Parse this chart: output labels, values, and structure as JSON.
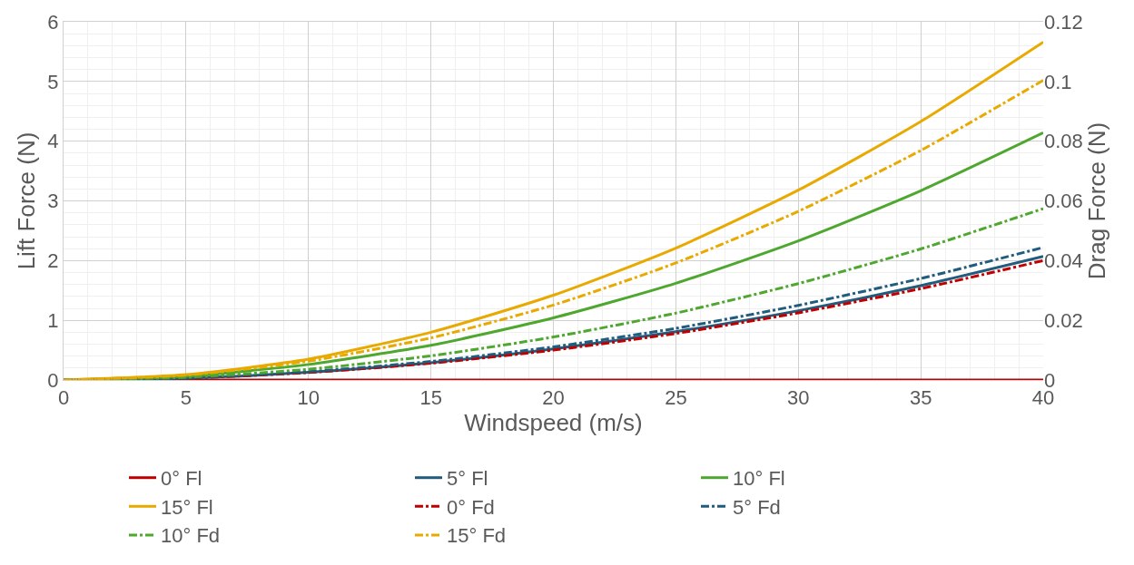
{
  "chart_data": {
    "type": "line",
    "xlabel": "Windspeed (m/s)",
    "ylabel": "Lift Force (N)",
    "y2label": "Drag Force (N)",
    "x": [
      0,
      5,
      10,
      15,
      20,
      25,
      30,
      35,
      40
    ],
    "xlim": [
      0,
      40
    ],
    "xticks": [
      0,
      5,
      10,
      15,
      20,
      25,
      30,
      35,
      40
    ],
    "ylim": [
      0,
      6
    ],
    "yticks": [
      0,
      1,
      2,
      3,
      4,
      5,
      6
    ],
    "y2lim": [
      0,
      0.12
    ],
    "y2ticks": [
      0,
      0.02,
      0.04,
      0.06,
      0.08,
      0.1,
      0.12
    ],
    "grid": true,
    "legend": "bottom",
    "marker": "none",
    "series": [
      {
        "name": "0° Fl",
        "color": "#c00000",
        "line_style": "solid",
        "values": [
          0,
          0,
          0,
          0,
          0,
          0,
          0,
          0,
          0
        ]
      },
      {
        "name": "5° Fl",
        "color": "#1f5c7d",
        "line_style": "solid",
        "values": [
          0,
          0.03,
          0.13,
          0.29,
          0.52,
          0.81,
          1.16,
          1.58,
          2.07
        ]
      },
      {
        "name": "10° Fl",
        "color": "#4ea72e",
        "line_style": "solid",
        "values": [
          0,
          0.06,
          0.26,
          0.58,
          1.04,
          1.62,
          2.33,
          3.17,
          4.14
        ]
      },
      {
        "name": "15° Fl",
        "color": "#e8a900",
        "line_style": "solid",
        "values": [
          0,
          0.09,
          0.35,
          0.8,
          1.42,
          2.21,
          3.18,
          4.33,
          5.66
        ]
      },
      {
        "name": "0° Fd",
        "color": "#c00000",
        "line_style": "dashdot",
        "axis": "y2",
        "values": [
          0,
          0.0006,
          0.0025,
          0.0056,
          0.01,
          0.0156,
          0.0225,
          0.0306,
          0.04
        ]
      },
      {
        "name": "5° Fd",
        "color": "#1f5c7d",
        "line_style": "dashdot",
        "axis": "y2",
        "values": [
          0,
          0.0007,
          0.0028,
          0.0062,
          0.0111,
          0.0173,
          0.025,
          0.034,
          0.0444
        ]
      },
      {
        "name": "10° Fd",
        "color": "#4ea72e",
        "line_style": "dashdot",
        "axis": "y2",
        "values": [
          0,
          0.0009,
          0.0036,
          0.0081,
          0.0144,
          0.0224,
          0.0323,
          0.0439,
          0.0574
        ]
      },
      {
        "name": "15° Fd",
        "color": "#e8a900",
        "line_style": "dashdot",
        "axis": "y2",
        "values": [
          0,
          0.0016,
          0.0063,
          0.0141,
          0.0251,
          0.0392,
          0.0565,
          0.0769,
          0.1004
        ]
      }
    ]
  }
}
